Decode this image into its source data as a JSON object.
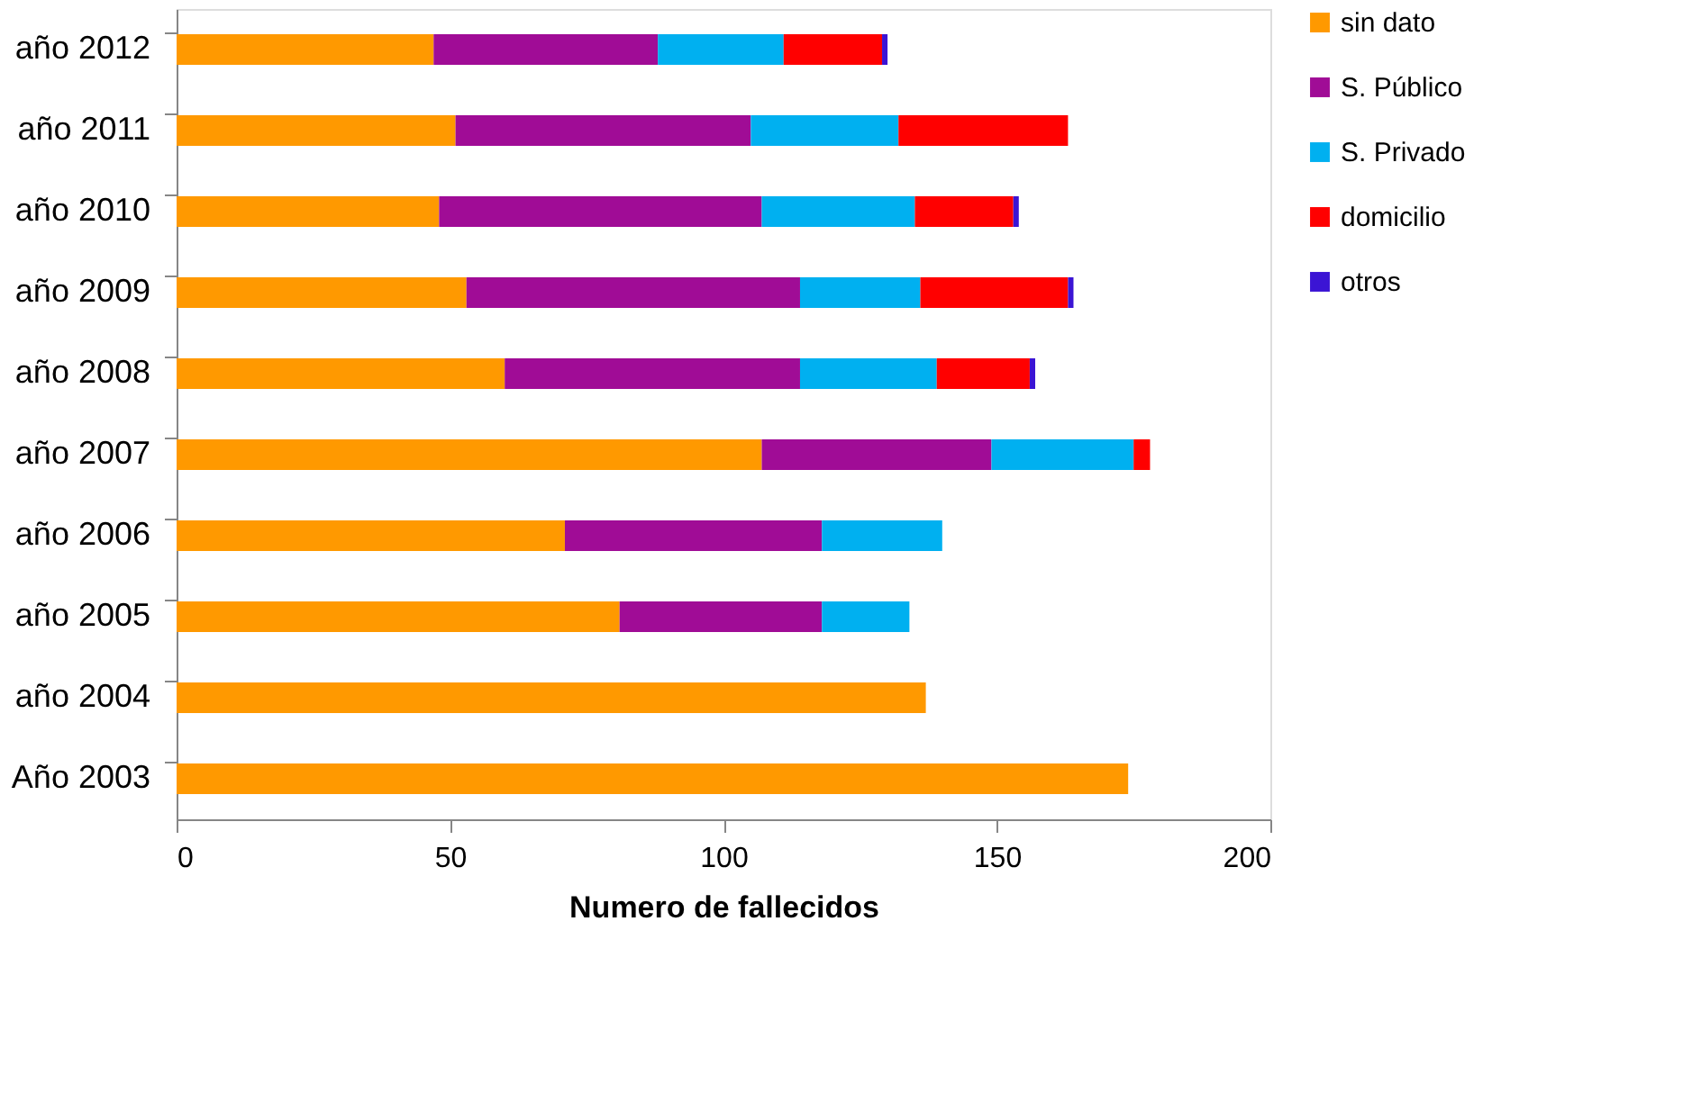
{
  "chart_data": {
    "type": "bar",
    "orientation": "horizontal",
    "stacked": true,
    "xlabel": "Numero de fallecidos",
    "categories": [
      "año 2012",
      "año 2011",
      "año 2010",
      "año 2009",
      "año 2008",
      "año 2007",
      "año 2006",
      "año 2005",
      "año 2004",
      "Año 2003"
    ],
    "series": [
      {
        "name": "sin dato",
        "color": "#ff9900",
        "values": [
          47,
          51,
          48,
          53,
          60,
          107,
          71,
          81,
          137,
          174
        ]
      },
      {
        "name": "S. Público",
        "color": "#a00c96",
        "values": [
          41,
          54,
          59,
          61,
          54,
          42,
          47,
          37,
          null,
          null
        ]
      },
      {
        "name": "S. Privado",
        "color": "#00b0f0",
        "values": [
          23,
          27,
          28,
          22,
          25,
          26,
          22,
          16,
          null,
          null
        ]
      },
      {
        "name": "domicilio",
        "color": "#ff0000",
        "values": [
          18,
          31,
          18,
          27,
          17,
          3,
          null,
          null,
          null,
          null
        ]
      },
      {
        "name": "otros",
        "color": "#3b14d4",
        "values": [
          1,
          null,
          1,
          1,
          1,
          null,
          null,
          null,
          null,
          null
        ]
      }
    ],
    "xlim": [
      0,
      200
    ],
    "xticks": [
      0,
      50,
      100,
      150,
      200
    ],
    "grid": false,
    "legend": "right"
  }
}
